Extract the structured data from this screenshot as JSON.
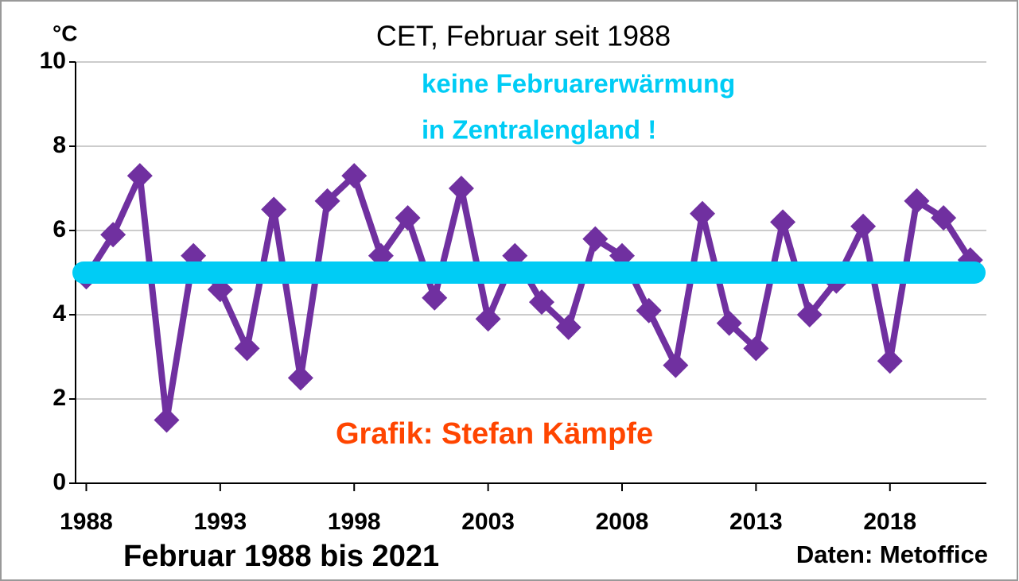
{
  "chart_data": {
    "type": "line",
    "title": "CET, Februar seit 1988",
    "y_unit": "°C",
    "x": [
      1988,
      1989,
      1990,
      1991,
      1992,
      1993,
      1994,
      1995,
      1996,
      1997,
      1998,
      1999,
      2000,
      2001,
      2002,
      2003,
      2004,
      2005,
      2006,
      2007,
      2008,
      2009,
      2010,
      2011,
      2012,
      2013,
      2014,
      2015,
      2016,
      2017,
      2018,
      2019,
      2020,
      2021
    ],
    "series": [
      {
        "name": "CET Februar",
        "color": "#7030a0",
        "values": [
          4.9,
          5.9,
          7.3,
          1.5,
          5.4,
          4.6,
          3.2,
          6.5,
          2.5,
          6.7,
          7.3,
          5.4,
          6.3,
          4.4,
          7.0,
          3.9,
          5.4,
          4.3,
          3.7,
          5.8,
          5.4,
          4.1,
          2.8,
          6.4,
          3.8,
          3.2,
          6.2,
          4.0,
          4.8,
          6.1,
          2.9,
          6.7,
          6.3,
          5.3
        ]
      }
    ],
    "reference_line": {
      "value": 5,
      "color": "#00ccf5"
    },
    "xlim": [
      1987.6,
      2021.6
    ],
    "xticks": [
      1988,
      1993,
      1998,
      2003,
      2008,
      2013,
      2018
    ],
    "ylim": [
      0,
      10
    ],
    "yticks": [
      0,
      2,
      4,
      6,
      8,
      10
    ],
    "grid": true,
    "annotations": [
      "keine Februarerwärmung",
      "in Zentralengland !",
      "Grafik: Stefan Kämpfe",
      "Februar 1988 bis 2021",
      "Daten: Metoffice"
    ]
  }
}
